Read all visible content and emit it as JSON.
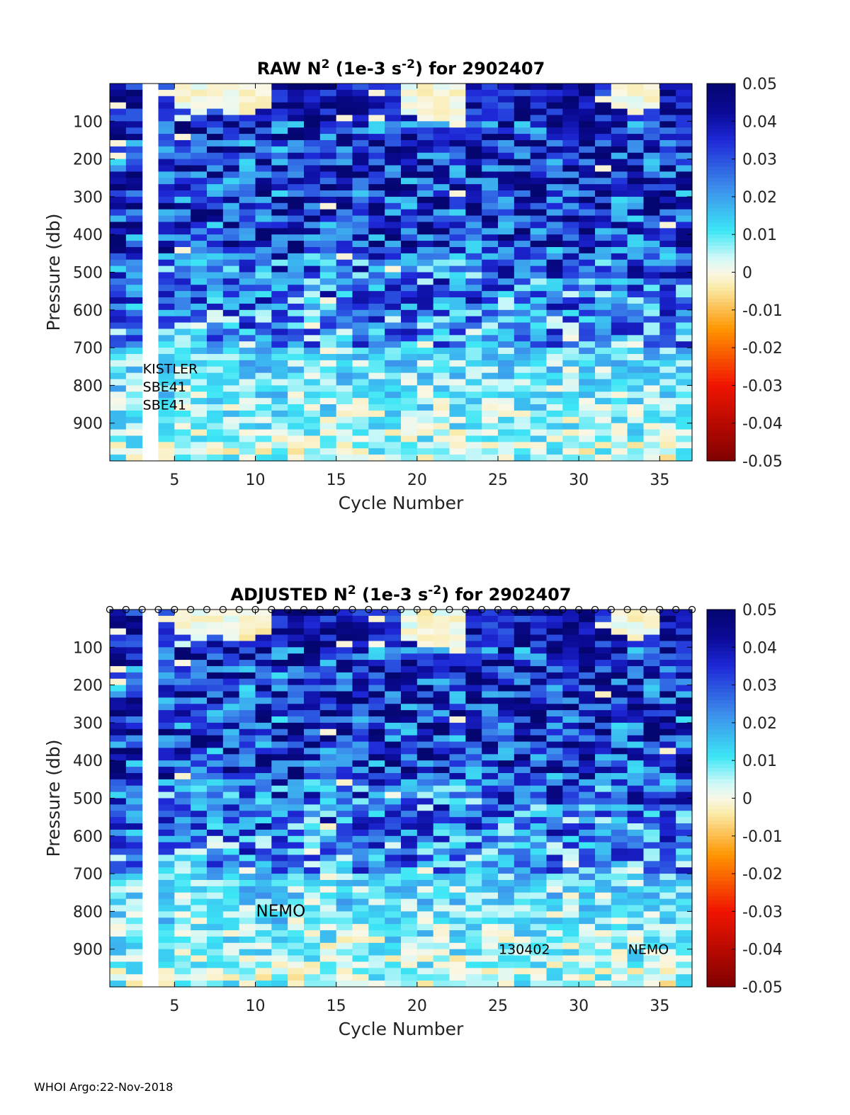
{
  "footer": {
    "text": "WHOI Argo:22-Nov-2018"
  },
  "chart_data": [
    {
      "type": "heatmap",
      "title": "RAW N² (1e-3 s⁻²) for 2902407",
      "title_parts": {
        "prefix": "RAW N",
        "sup1": "2",
        "middle": " (1e-3 s",
        "sup2": "-2",
        "suffix": ") for 2902407"
      },
      "xlabel": "Cycle Number",
      "ylabel": "Pressure (db)",
      "xlim": [
        1,
        37
      ],
      "ylim": [
        1000,
        0
      ],
      "xticks": [
        5,
        10,
        15,
        20,
        25,
        30,
        35
      ],
      "yticks": [
        100,
        200,
        300,
        400,
        500,
        600,
        700,
        800,
        900
      ],
      "missing_cycles": [
        3
      ],
      "colorbar": {
        "min": -0.05,
        "max": 0.05,
        "ticks": [
          "0.05",
          "0.04",
          "0.03",
          "0.02",
          "0.01",
          "0",
          "-0.01",
          "-0.02",
          "-0.03",
          "-0.04",
          "-0.05"
        ]
      },
      "annotations": [
        {
          "text": "KISTLER",
          "cycle": 3,
          "pressure": 755
        },
        {
          "text": "SBE41",
          "cycle": 3,
          "pressure": 803
        },
        {
          "text": "SBE41",
          "cycle": 3,
          "pressure": 851
        }
      ]
    },
    {
      "type": "heatmap",
      "title": "ADJUSTED N² (1e-3 s⁻²) for 2902407",
      "title_parts": {
        "prefix": "ADJUSTED N",
        "sup1": "2",
        "middle": " (1e-3 s",
        "sup2": "-2",
        "suffix": ") for 2902407"
      },
      "xlabel": "Cycle Number",
      "ylabel": "Pressure (db)",
      "xlim": [
        1,
        37
      ],
      "ylim": [
        1000,
        0
      ],
      "xticks": [
        5,
        10,
        15,
        20,
        25,
        30,
        35
      ],
      "yticks": [
        100,
        200,
        300,
        400,
        500,
        600,
        700,
        800,
        900
      ],
      "missing_cycles": [
        3
      ],
      "qc_markers": {
        "symbol": "o",
        "cycles_from": 1,
        "cycles_to": 37
      },
      "colorbar": {
        "min": -0.05,
        "max": 0.05,
        "ticks": [
          "0.05",
          "0.04",
          "0.03",
          "0.02",
          "0.01",
          "0",
          "-0.01",
          "-0.02",
          "-0.03",
          "-0.04",
          "-0.05"
        ]
      },
      "annotations": [
        {
          "text": "NEMO",
          "cycle": 10,
          "pressure": 800
        },
        {
          "text": "130402",
          "cycle": 25,
          "pressure": 900
        },
        {
          "text": "NEMO",
          "cycle": 33,
          "pressure": 900
        }
      ]
    }
  ]
}
